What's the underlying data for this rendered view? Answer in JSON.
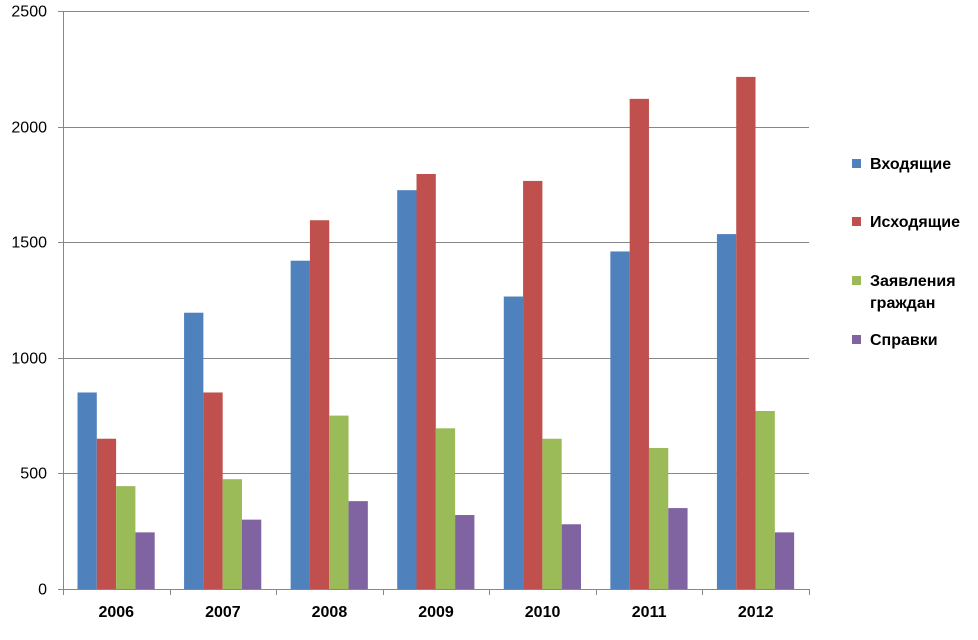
{
  "chart_data": {
    "type": "bar",
    "categories": [
      "2006",
      "2007",
      "2008",
      "2009",
      "2010",
      "2011",
      "2012"
    ],
    "series": [
      {
        "name": "Входящие",
        "color": "#4F81BD",
        "values": [
          850,
          1195,
          1420,
          1725,
          1265,
          1460,
          1535
        ]
      },
      {
        "name": "Исходящие",
        "color": "#C0504D",
        "values": [
          650,
          850,
          1595,
          1795,
          1765,
          2120,
          2215
        ]
      },
      {
        "name": "Заявления граждан",
        "color": "#9BBB59",
        "values": [
          445,
          475,
          750,
          695,
          650,
          610,
          770
        ]
      },
      {
        "name": "Справки",
        "color": "#8064A2",
        "values": [
          245,
          300,
          380,
          320,
          280,
          350,
          245
        ]
      }
    ],
    "yticks": [
      "0",
      "500",
      "1000",
      "1500",
      "2000",
      "2500"
    ],
    "ylim": [
      0,
      2500
    ],
    "title": "",
    "xlabel": "",
    "ylabel": "",
    "grid": true,
    "legend_position": "right"
  }
}
